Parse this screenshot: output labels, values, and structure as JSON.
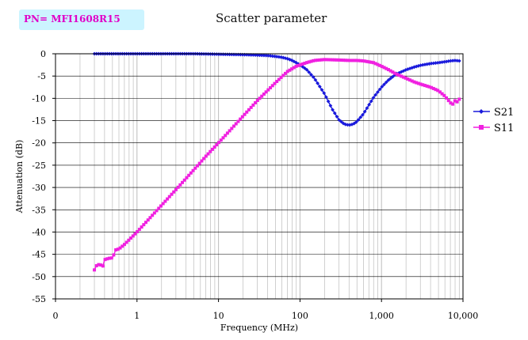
{
  "badge": {
    "text": "PN= MFI1608R15"
  },
  "colors": {
    "s21": "#1a1adc",
    "s11": "#f020e0",
    "badge_bg": "#ccf4ff",
    "grid": "#bdbdbd"
  },
  "chart_data": {
    "type": "line",
    "title": "Scatter parameter",
    "xlabel": "Frequency (MHz)",
    "ylabel": "Attenuation (dB)",
    "xscale": "log",
    "xlim": [
      0.1,
      10000
    ],
    "ylim": [
      -55,
      0
    ],
    "x_tick_labels": [
      "0",
      "1",
      "10",
      "100",
      "1,000",
      "10,000"
    ],
    "y_ticks": [
      0,
      -5,
      -10,
      -15,
      -20,
      -25,
      -30,
      -35,
      -40,
      -45,
      -50,
      -55
    ],
    "grid": true,
    "legend_position": "right",
    "series": [
      {
        "name": "S21",
        "marker": "diamond",
        "points": [
          [
            0.3,
            0
          ],
          [
            1,
            0
          ],
          [
            5,
            0
          ],
          [
            10,
            -0.1
          ],
          [
            20,
            -0.2
          ],
          [
            30,
            -0.3
          ],
          [
            40,
            -0.4
          ],
          [
            50,
            -0.6
          ],
          [
            60,
            -0.8
          ],
          [
            70,
            -1.1
          ],
          [
            80,
            -1.5
          ],
          [
            90,
            -2
          ],
          [
            100,
            -2.5
          ],
          [
            120,
            -3.5
          ],
          [
            150,
            -5.5
          ],
          [
            200,
            -9
          ],
          [
            250,
            -12.5
          ],
          [
            300,
            -14.8
          ],
          [
            350,
            -15.8
          ],
          [
            400,
            -16
          ],
          [
            450,
            -15.8
          ],
          [
            500,
            -15.2
          ],
          [
            600,
            -13.5
          ],
          [
            700,
            -11.5
          ],
          [
            800,
            -9.8
          ],
          [
            1000,
            -7.5
          ],
          [
            1200,
            -6
          ],
          [
            1500,
            -4.6
          ],
          [
            2000,
            -3.6
          ],
          [
            2500,
            -3
          ],
          [
            3000,
            -2.6
          ],
          [
            4000,
            -2.2
          ],
          [
            5000,
            -2
          ],
          [
            6000,
            -1.8
          ],
          [
            7000,
            -1.6
          ],
          [
            8000,
            -1.5
          ],
          [
            9000,
            -1.6
          ]
        ]
      },
      {
        "name": "S11",
        "marker": "square",
        "points": [
          [
            0.3,
            -48.5
          ],
          [
            0.32,
            -47.5
          ],
          [
            0.35,
            -47.2
          ],
          [
            0.38,
            -47.8
          ],
          [
            0.4,
            -46.2
          ],
          [
            0.45,
            -45.9
          ],
          [
            0.5,
            -45.8
          ],
          [
            0.55,
            -44
          ],
          [
            0.6,
            -43.8
          ],
          [
            0.7,
            -42.8
          ],
          [
            1,
            -40
          ],
          [
            2,
            -34
          ],
          [
            3,
            -30.5
          ],
          [
            5,
            -26
          ],
          [
            7,
            -23
          ],
          [
            10,
            -20
          ],
          [
            20,
            -14
          ],
          [
            30,
            -10.5
          ],
          [
            50,
            -6.5
          ],
          [
            70,
            -4
          ],
          [
            90,
            -2.8
          ],
          [
            100,
            -2.5
          ],
          [
            120,
            -2
          ],
          [
            150,
            -1.5
          ],
          [
            200,
            -1.3
          ],
          [
            300,
            -1.4
          ],
          [
            400,
            -1.5
          ],
          [
            500,
            -1.5
          ],
          [
            600,
            -1.6
          ],
          [
            800,
            -2
          ],
          [
            1000,
            -2.8
          ],
          [
            1200,
            -3.5
          ],
          [
            1500,
            -4.5
          ],
          [
            2000,
            -5.5
          ],
          [
            2500,
            -6.3
          ],
          [
            3000,
            -6.8
          ],
          [
            4000,
            -7.5
          ],
          [
            5000,
            -8.3
          ],
          [
            6000,
            -9.5
          ],
          [
            7000,
            -11
          ],
          [
            7500,
            -11.3
          ],
          [
            8000,
            -10.5
          ],
          [
            8500,
            -10.8
          ],
          [
            9000,
            -10.2
          ]
        ]
      }
    ]
  }
}
